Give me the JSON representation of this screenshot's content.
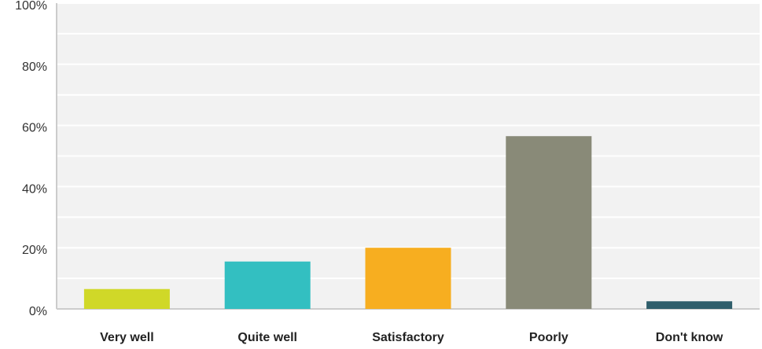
{
  "chart_data": {
    "type": "bar",
    "title": "",
    "xlabel": "",
    "ylabel": "",
    "categories": [
      "Very well",
      "Quite well",
      "Satisfactory",
      "Poorly",
      "Don't know"
    ],
    "values": [
      6.5,
      15.5,
      20,
      56.5,
      2.5
    ],
    "value_unit": "%",
    "ylim": [
      0,
      100
    ],
    "y_ticks": [
      "0%",
      "20%",
      "40%",
      "60%",
      "80%",
      "100%"
    ],
    "y_tick_values": [
      0,
      20,
      40,
      60,
      80,
      100
    ],
    "grid": true,
    "legend": "none",
    "colors": [
      "#d0d828",
      "#33bfc1",
      "#f7ae20",
      "#898a78",
      "#2f5e6b"
    ]
  },
  "style": {
    "plot_background": "#f2f2f2",
    "gridline_color": "#ffffff",
    "axis_color": "#cccccc"
  }
}
